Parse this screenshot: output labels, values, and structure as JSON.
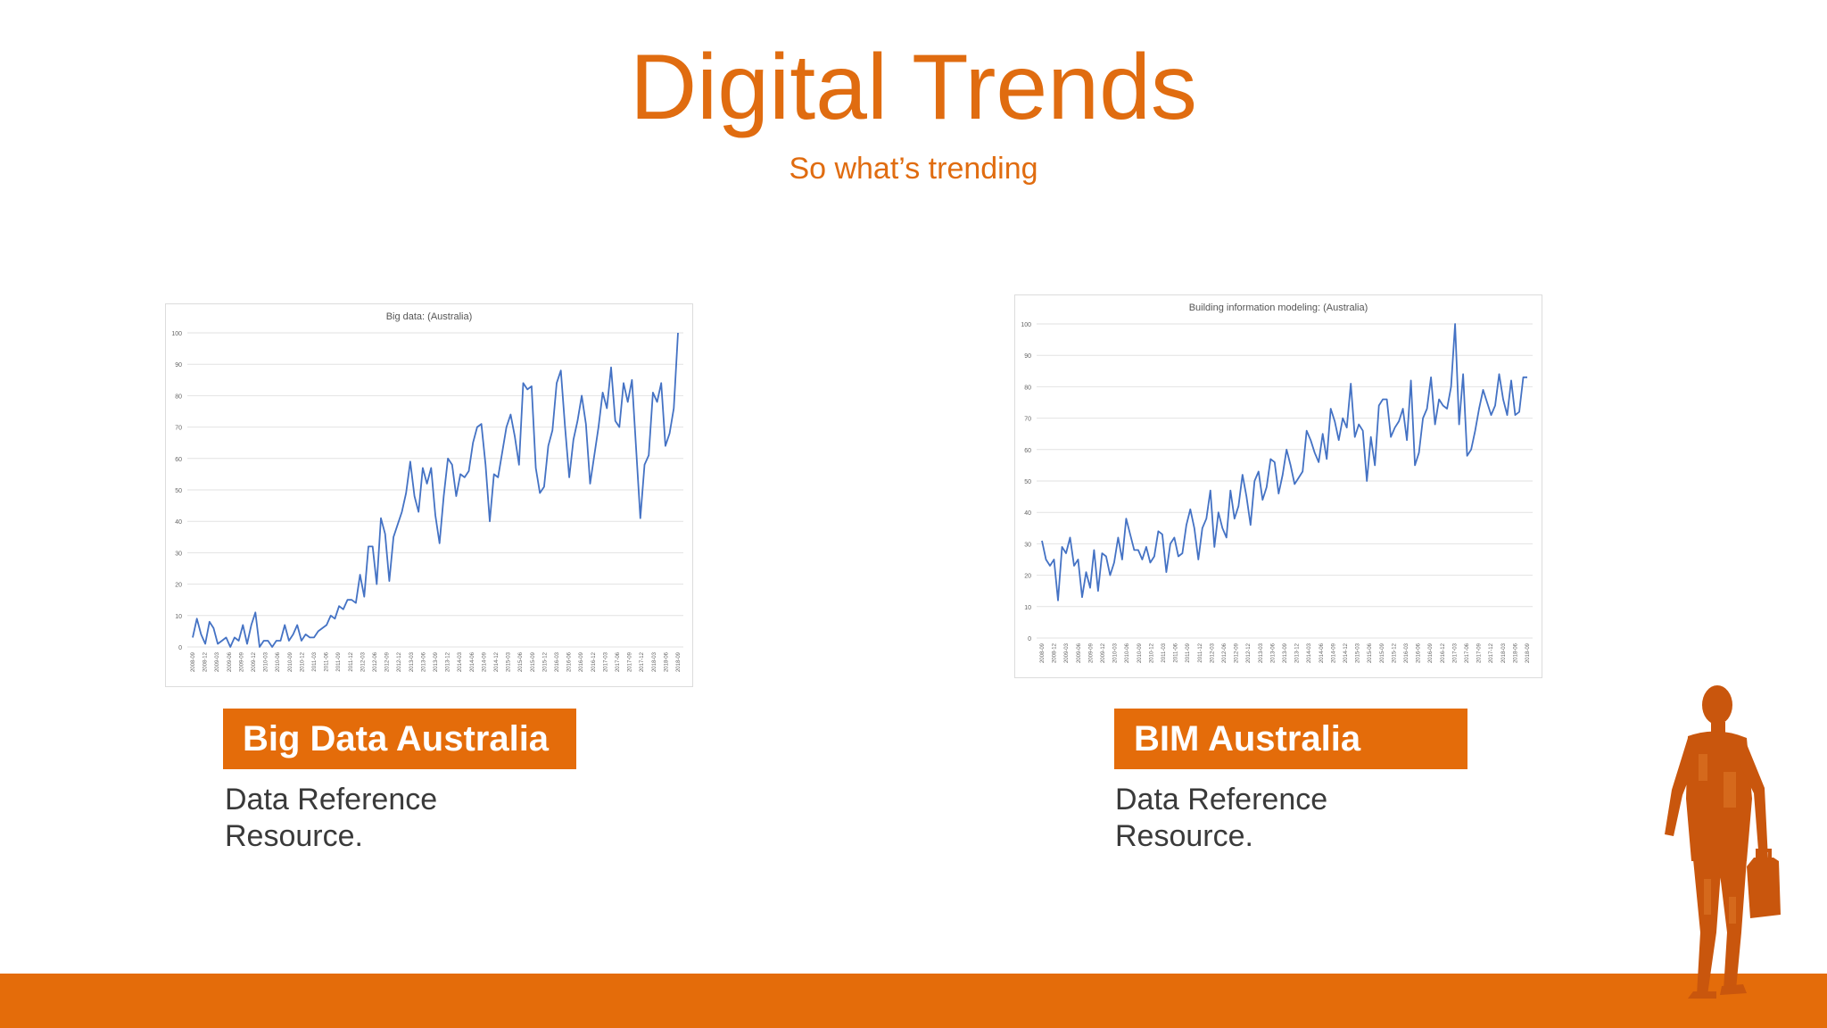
{
  "slide": {
    "title": "Digital Trends",
    "subtitle": "So what’s trending"
  },
  "cards": [
    {
      "label": "Big Data Australia",
      "desc_line1": "Data Reference",
      "desc_line2": "Resource."
    },
    {
      "label": "BIM Australia",
      "desc_line1": "Data Reference",
      "desc_line2": "Resource."
    }
  ],
  "colors": {
    "accent": "#e46c0a",
    "title": "#e06c10",
    "line": "#4472c4"
  },
  "chart_data": [
    {
      "type": "line",
      "title": "Big data: (Australia)",
      "xlabel": "",
      "ylabel": "",
      "ylim": [
        0,
        100
      ],
      "yticks": [
        0,
        10,
        20,
        30,
        40,
        50,
        60,
        70,
        80,
        90,
        100
      ],
      "grid": true,
      "x_tick_labels": [
        "2008-09",
        "2008-12",
        "2009-03",
        "2009-06",
        "2009-09",
        "2009-12",
        "2010-03",
        "2010-06",
        "2010-09",
        "2010-12",
        "2011-03",
        "2011-06",
        "2011-09",
        "2011-12",
        "2012-03",
        "2012-06",
        "2012-09",
        "2012-12",
        "2013-03",
        "2013-06",
        "2013-09",
        "2013-12",
        "2014-03",
        "2014-06",
        "2014-09",
        "2014-12",
        "2015-03",
        "2015-06",
        "2015-09",
        "2015-12",
        "2016-03",
        "2016-06",
        "2016-09",
        "2016-12",
        "2017-03",
        "2017-06",
        "2017-09",
        "2017-12",
        "2018-03",
        "2018-06",
        "2018-09"
      ],
      "series": [
        {
          "values": [
            3,
            9,
            4,
            1,
            8,
            6,
            1,
            2,
            3,
            0,
            3,
            2,
            7,
            1,
            7,
            11,
            0,
            2,
            2,
            0,
            2,
            2,
            7,
            2,
            4,
            7,
            2,
            4,
            3,
            3,
            5,
            6,
            7,
            10,
            9,
            13,
            12,
            15,
            15,
            14,
            23,
            16,
            32,
            32,
            20,
            41,
            36,
            21,
            35,
            39,
            43,
            49,
            59,
            48,
            43,
            57,
            52,
            57,
            42,
            33,
            48,
            60,
            58,
            48,
            55,
            54,
            56,
            65,
            70,
            71,
            58,
            40,
            55,
            54,
            62,
            70,
            74,
            67,
            58,
            84,
            82,
            83,
            57,
            49,
            51,
            64,
            69,
            84,
            88,
            70,
            54,
            66,
            72,
            80,
            71,
            52,
            61,
            70,
            81,
            76,
            89,
            72,
            70,
            84,
            78,
            85,
            63,
            41,
            58,
            61,
            81,
            78,
            84,
            64,
            68,
            76,
            100
          ]
        }
      ]
    },
    {
      "type": "line",
      "title": "Building information modeling: (Australia)",
      "xlabel": "",
      "ylabel": "",
      "ylim": [
        0,
        100
      ],
      "yticks": [
        0,
        10,
        20,
        30,
        40,
        50,
        60,
        70,
        80,
        90,
        100
      ],
      "grid": true,
      "x_tick_labels": [
        "2008-09",
        "2008-12",
        "2009-03",
        "2009-06",
        "2009-09",
        "2009-12",
        "2010-03",
        "2010-06",
        "2010-09",
        "2010-12",
        "2011-03",
        "2011-06",
        "2011-09",
        "2011-12",
        "2012-03",
        "2012-06",
        "2012-09",
        "2012-12",
        "2013-03",
        "2013-06",
        "2013-09",
        "2013-12",
        "2014-03",
        "2014-06",
        "2014-09",
        "2014-12",
        "2015-03",
        "2015-06",
        "2015-09",
        "2015-12",
        "2016-03",
        "2016-06",
        "2016-09",
        "2016-12",
        "2017-03",
        "2017-06",
        "2017-09",
        "2017-12",
        "2018-03",
        "2018-06",
        "2018-09"
      ],
      "series": [
        {
          "values": [
            31,
            25,
            23,
            25,
            12,
            29,
            27,
            32,
            23,
            25,
            13,
            21,
            16,
            28,
            15,
            27,
            26,
            20,
            24,
            32,
            25,
            38,
            33,
            28,
            28,
            25,
            29,
            24,
            26,
            34,
            33,
            21,
            30,
            32,
            26,
            27,
            36,
            41,
            35,
            25,
            35,
            38,
            47,
            29,
            40,
            35,
            32,
            47,
            38,
            42,
            52,
            45,
            36,
            50,
            53,
            44,
            48,
            57,
            56,
            46,
            52,
            60,
            55,
            49,
            51,
            53,
            66,
            63,
            59,
            56,
            65,
            57,
            73,
            69,
            63,
            70,
            67,
            81,
            64,
            68,
            66,
            50,
            64,
            55,
            74,
            76,
            76,
            64,
            67,
            69,
            73,
            63,
            82,
            55,
            59,
            70,
            73,
            83,
            68,
            76,
            74,
            73,
            80,
            100,
            68,
            84,
            58,
            60,
            66,
            73,
            79,
            75,
            71,
            74,
            84,
            76,
            71,
            82,
            71,
            72,
            83,
            83
          ]
        }
      ]
    }
  ]
}
